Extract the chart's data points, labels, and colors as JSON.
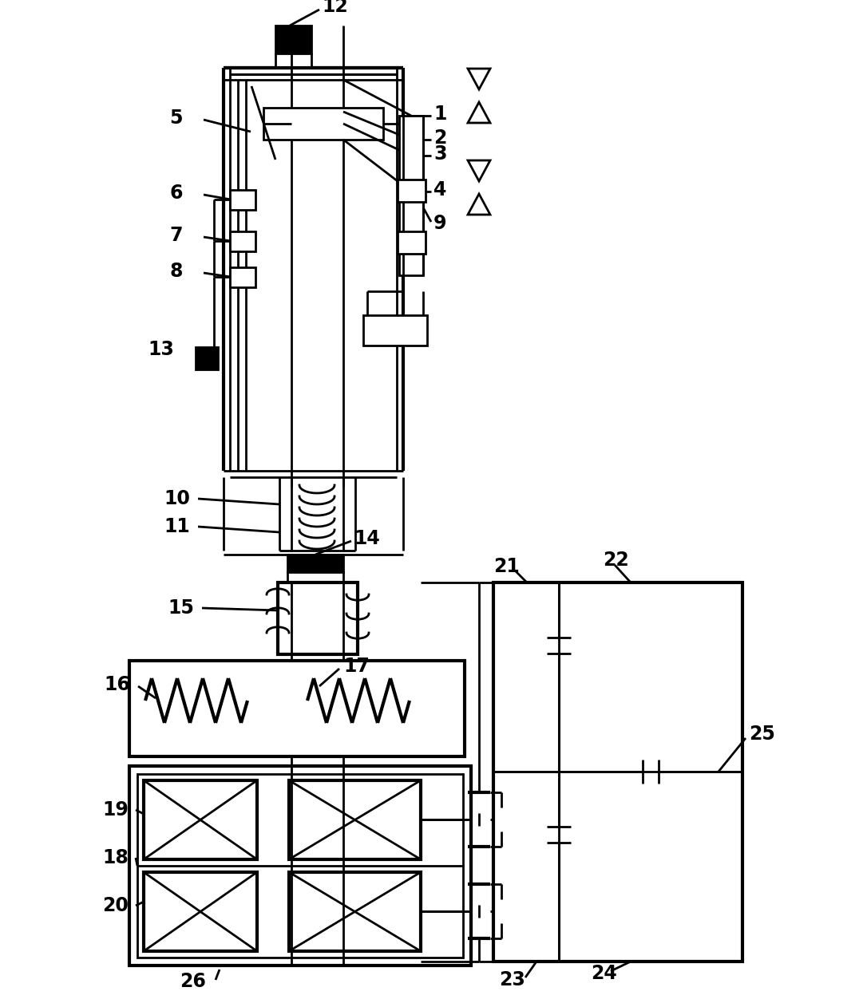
{
  "bg": "#ffffff",
  "lc": "#000000",
  "lw": 2.0,
  "lw2": 3.0,
  "fs": 17,
  "fw": "bold"
}
